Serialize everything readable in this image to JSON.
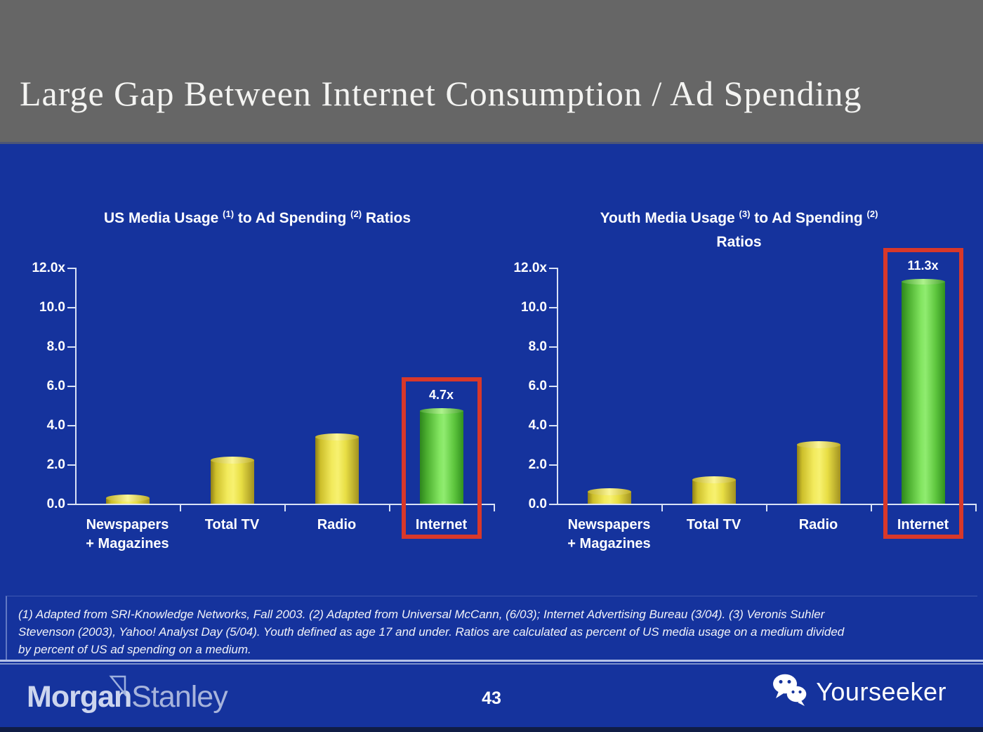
{
  "slide": {
    "title": "Large Gap Between Internet Consumption / Ad Spending",
    "page_number": "43",
    "footnote_lines": [
      "(1) Adapted from SRI-Knowledge Networks, Fall 2003.  (2) Adapted from Universal McCann, (6/03); Internet Advertising Bureau (3/04). (3) Veronis Suhler",
      "Stevenson (2003), Yahoo! Analyst Day (5/04).  Youth defined as age 17 and under.  Ratios are calculated as percent of US media usage on a medium divided",
      "by percent of US ad spending on a medium."
    ],
    "branding": {
      "logo_morgan": "Morgan",
      "logo_stanley": "Stanley",
      "watermark": "Yourseeker"
    }
  },
  "colors": {
    "header_gray": "#666666",
    "slide_blue": "#15339d",
    "bar_yellow": "#ece345",
    "bar_green": "#5dd23d",
    "highlight_red": "#d8382a",
    "axis_line": "#d9e2f6",
    "text_white": "#ffffff",
    "logo_silver": "#b9c4e6",
    "separator": "#b6c3e8"
  },
  "chart_data": [
    {
      "type": "bar",
      "title": "US Media Usage (1) to Ad Spending (2) Ratios",
      "title_segments": [
        {
          "text": "US Media Usage ",
          "sup": false
        },
        {
          "text": "(1)",
          "sup": true
        },
        {
          "text": " to Ad Spending ",
          "sup": false
        },
        {
          "text": "(2)",
          "sup": true
        },
        {
          "text": " Ratios",
          "sup": false
        }
      ],
      "categories": [
        [
          "Newspapers",
          "+ Magazines"
        ],
        [
          "Total TV"
        ],
        [
          "Radio"
        ],
        [
          "Internet"
        ]
      ],
      "values": [
        0.3,
        2.2,
        3.4,
        4.7
      ],
      "highlight_index": 3,
      "highlight_label": "4.7x",
      "xlabel": "",
      "ylabel": "",
      "yticks": [
        "12.0x",
        "10.0",
        "8.0",
        "6.0",
        "4.0",
        "2.0",
        "0.0"
      ],
      "ylim": [
        0,
        12
      ],
      "grid": false,
      "legend": "none"
    },
    {
      "type": "bar",
      "title": "Youth Media Usage (3) to Ad Spending (2) Ratios",
      "title_segments": [
        {
          "text": "Youth Media Usage ",
          "sup": false
        },
        {
          "text": "(3)",
          "sup": true
        },
        {
          "text": " to Ad Spending ",
          "sup": false
        },
        {
          "text": "(2)",
          "sup": true
        },
        {
          "text": "Ratios",
          "sup": false,
          "newline": true
        }
      ],
      "categories": [
        [
          "Newspapers",
          "+ Magazines"
        ],
        [
          "Total TV"
        ],
        [
          "Radio"
        ],
        [
          "Internet"
        ]
      ],
      "values": [
        0.6,
        1.2,
        3.0,
        11.3
      ],
      "highlight_index": 3,
      "highlight_label": "11.3x",
      "xlabel": "",
      "ylabel": "",
      "yticks": [
        "12.0x",
        "10.0",
        "8.0",
        "6.0",
        "4.0",
        "2.0",
        "0.0"
      ],
      "ylim": [
        0,
        12
      ],
      "grid": false,
      "legend": "none"
    }
  ]
}
